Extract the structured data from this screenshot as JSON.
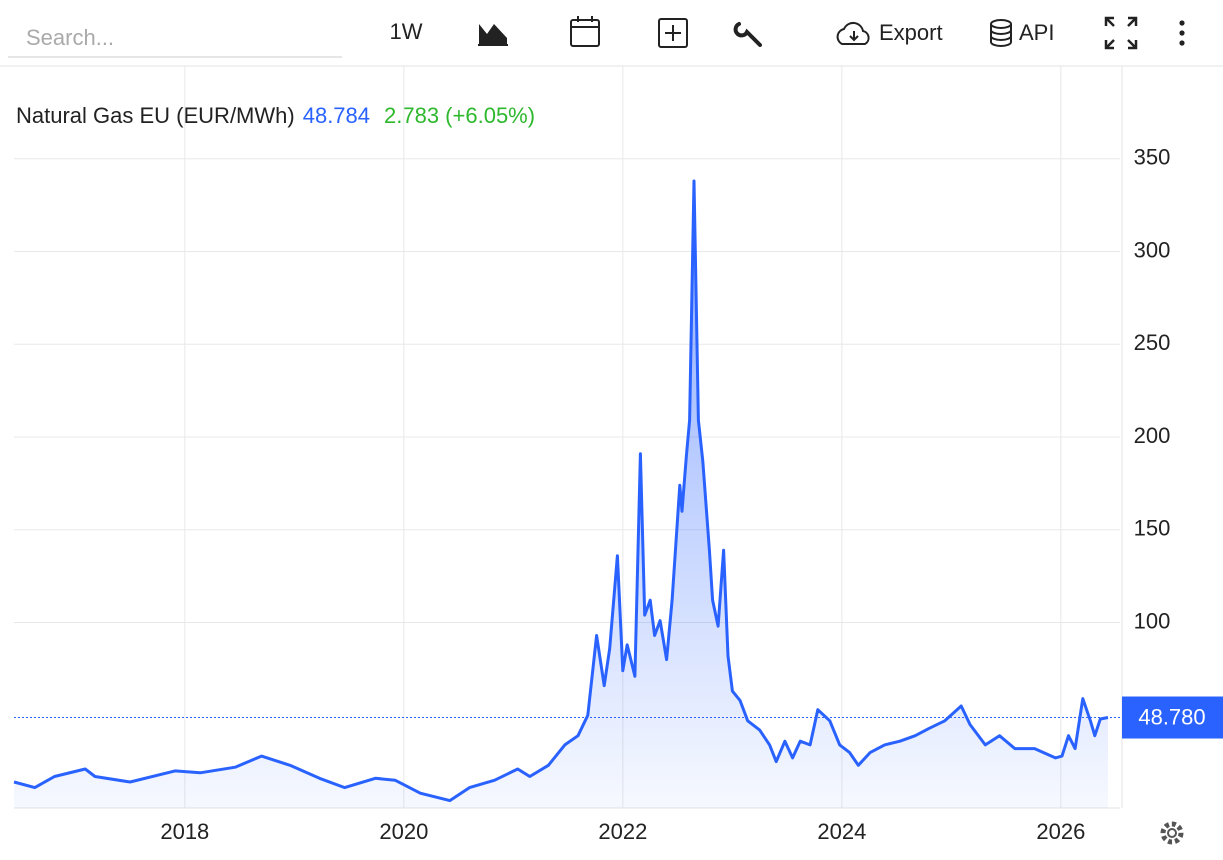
{
  "toolbar": {
    "search_placeholder": "Search...",
    "interval": "1W",
    "export": "Export",
    "api": "API"
  },
  "chart_data": {
    "type": "area",
    "title": "Natural Gas EU (EUR/MWh)",
    "last_value": "48.784",
    "change": "2.783 (+6.05%)",
    "color": "#2962ff",
    "grid": true,
    "x": [
      2016.44,
      2016.63,
      2016.81,
      2017.09,
      2017.18,
      2017.5,
      2017.91,
      2018.14,
      2018.46,
      2018.7,
      2018.96,
      2019.23,
      2019.46,
      2019.74,
      2019.92,
      2020.15,
      2020.42,
      2020.6,
      2020.83,
      2021.04,
      2021.15,
      2021.32,
      2021.47,
      2021.59,
      2021.68,
      2021.76,
      2021.83,
      2021.88,
      2021.95,
      2022.0,
      2022.04,
      2022.11,
      2022.16,
      2022.2,
      2022.25,
      2022.29,
      2022.34,
      2022.4,
      2022.45,
      2022.52,
      2022.54,
      2022.58,
      2022.61,
      2022.65,
      2022.69,
      2022.73,
      2022.79,
      2022.82,
      2022.87,
      2022.92,
      2022.96,
      2023.0,
      2023.07,
      2023.14,
      2023.25,
      2023.34,
      2023.4,
      2023.48,
      2023.55,
      2023.62,
      2023.71,
      2023.78,
      2023.89,
      2023.98,
      2024.07,
      2024.15,
      2024.26,
      2024.39,
      2024.53,
      2024.67,
      2024.8,
      2024.94,
      2025.09,
      2025.17,
      2025.31,
      2025.44,
      2025.58,
      2025.76,
      2025.95,
      2026.01,
      2026.07,
      2026.13,
      2026.2,
      2026.27,
      2026.31,
      2026.36,
      2026.43
    ],
    "values": [
      14,
      11,
      17,
      21,
      17,
      14,
      20,
      19,
      22,
      28,
      23,
      16,
      11,
      16,
      15,
      8,
      4,
      11,
      15,
      21,
      17,
      23,
      34,
      39,
      50,
      93,
      66,
      86,
      136,
      74,
      88,
      71,
      191,
      104,
      112,
      93,
      101,
      80,
      112,
      174,
      160,
      190,
      209,
      338,
      209,
      187,
      139,
      112,
      98,
      139,
      82,
      63,
      58,
      47,
      42,
      34,
      25,
      36,
      27,
      36,
      34,
      53,
      47,
      34,
      30,
      23,
      30,
      34,
      36,
      39,
      43,
      47,
      55,
      45,
      34,
      39,
      32,
      32,
      27,
      28,
      39,
      32,
      59,
      47,
      39,
      48,
      48.78
    ],
    "xlim": [
      2016.44,
      2026.54
    ],
    "xticks": [
      2018,
      2020,
      2022,
      2024,
      2026
    ],
    "ylim": [
      0,
      400
    ],
    "yticks": [
      100,
      150,
      200,
      250,
      300,
      350
    ],
    "price_line": {
      "value": 48.78,
      "label": "48.780"
    }
  }
}
